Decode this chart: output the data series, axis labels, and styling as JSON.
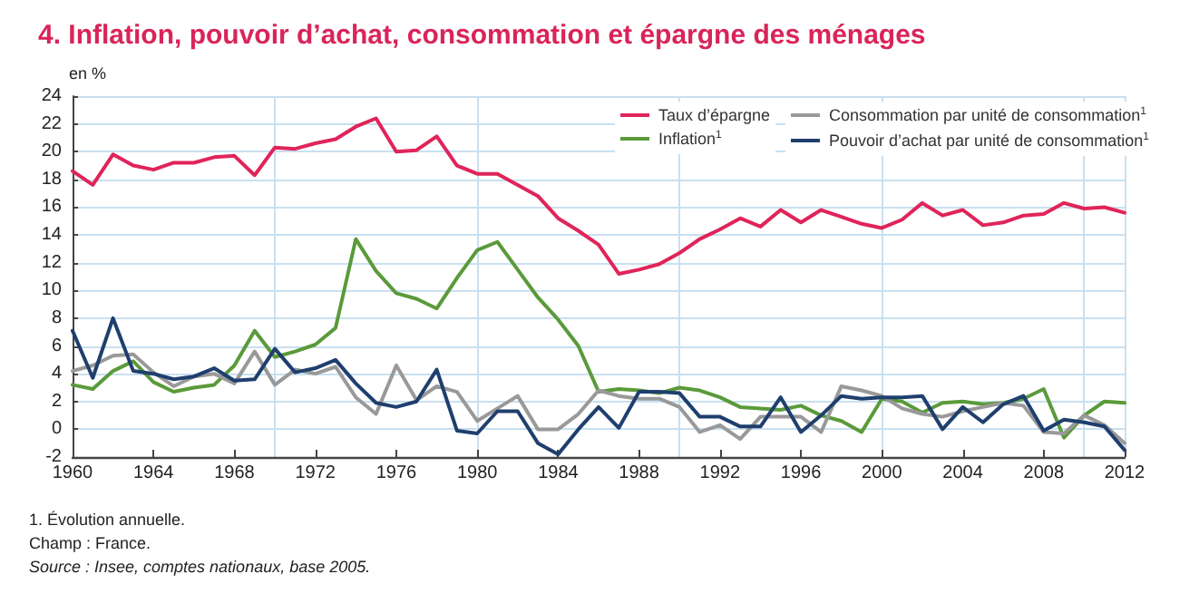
{
  "chart_data": {
    "type": "line",
    "title": "4. Inflation, pouvoir d’achat, consommation et épargne des ménages",
    "ylabel": "en %",
    "annotations": [
      "1. Évolution annuelle.",
      "Champ : France.",
      "Source : Insee, comptes nationaux, base 2005."
    ],
    "x": [
      1960,
      1961,
      1962,
      1963,
      1964,
      1965,
      1966,
      1967,
      1968,
      1969,
      1970,
      1971,
      1972,
      1973,
      1974,
      1975,
      1976,
      1977,
      1978,
      1979,
      1980,
      1981,
      1982,
      1983,
      1984,
      1985,
      1986,
      1987,
      1988,
      1989,
      1990,
      1991,
      1992,
      1993,
      1994,
      1995,
      1996,
      1997,
      1998,
      1999,
      2000,
      2001,
      2002,
      2003,
      2004,
      2005,
      2006,
      2007,
      2008,
      2009,
      2010,
      2011,
      2012
    ],
    "series": [
      {
        "name": "Taux d’épargne",
        "color": "#e0245a",
        "values": [
          18.6,
          17.6,
          19.8,
          19.0,
          18.7,
          19.2,
          19.2,
          19.6,
          19.7,
          18.3,
          20.3,
          20.2,
          20.6,
          20.9,
          21.8,
          22.4,
          20.0,
          20.1,
          21.1,
          19.0,
          18.4,
          18.4,
          17.6,
          16.8,
          15.2,
          14.3,
          13.3,
          11.2,
          11.5,
          11.9,
          12.7,
          13.7,
          14.4,
          15.2,
          14.6,
          15.8,
          14.9,
          15.8,
          15.3,
          14.8,
          14.5,
          15.1,
          16.3,
          15.4,
          15.8,
          14.7,
          14.9,
          15.4,
          15.5,
          16.3,
          15.9,
          16.0,
          15.6
        ]
      },
      {
        "name": "Inflation$^{1}$",
        "color": "#5a9a3a",
        "values": [
          3.2,
          2.9,
          4.2,
          4.9,
          3.4,
          2.7,
          3.0,
          3.2,
          4.6,
          7.1,
          5.2,
          5.6,
          6.1,
          7.3,
          13.7,
          11.4,
          9.8,
          9.4,
          8.7,
          10.9,
          12.9,
          13.5,
          11.5,
          9.5,
          7.9,
          6.0,
          2.7,
          2.9,
          2.8,
          2.6,
          3.0,
          2.8,
          2.3,
          1.6,
          1.5,
          1.4,
          1.7,
          1.0,
          0.6,
          -0.2,
          2.2,
          2.0,
          1.2,
          1.9,
          2.0,
          1.8,
          1.9,
          2.2,
          2.9,
          -0.6,
          1.0,
          2.0,
          1.9
        ]
      },
      {
        "name": "Consommation par unité de consommation$^{1}$",
        "color": "#999999",
        "values": [
          4.2,
          4.6,
          5.3,
          5.4,
          4.1,
          3.1,
          3.8,
          4.0,
          3.3,
          5.6,
          3.2,
          4.3,
          4.0,
          4.5,
          2.3,
          1.1,
          4.6,
          2.1,
          3.1,
          2.7,
          0.6,
          1.5,
          2.4,
          0.0,
          0.0,
          1.1,
          2.8,
          2.4,
          2.2,
          2.2,
          1.6,
          -0.2,
          0.3,
          -0.7,
          0.9,
          0.9,
          0.9,
          -0.2,
          3.1,
          2.8,
          2.4,
          1.5,
          1.1,
          0.9,
          1.3,
          1.6,
          1.9,
          1.7,
          -0.2,
          -0.3,
          1.0,
          0.3,
          -1.0
        ]
      },
      {
        "name": "Pouvoir d’achat par unité de consommation$^{1}$",
        "color": "#1f3f6e",
        "values": [
          7.1,
          3.7,
          8.0,
          4.2,
          4.0,
          3.6,
          3.8,
          4.4,
          3.5,
          3.6,
          5.8,
          4.1,
          4.4,
          5.0,
          3.3,
          1.9,
          1.6,
          2.0,
          4.3,
          -0.1,
          -0.3,
          1.3,
          1.3,
          -1.0,
          -1.8,
          0.0,
          1.6,
          0.1,
          2.7,
          2.7,
          2.6,
          0.9,
          0.9,
          0.2,
          0.2,
          2.3,
          -0.2,
          1.0,
          2.4,
          2.2,
          2.3,
          2.3,
          2.4,
          0.0,
          1.6,
          0.5,
          1.8,
          2.4,
          -0.1,
          0.7,
          0.5,
          0.2,
          -1.5
        ]
      }
    ],
    "xlim": [
      1960,
      2012
    ],
    "xticks": [
      1960,
      1964,
      1968,
      1972,
      1976,
      1980,
      1984,
      1988,
      1992,
      1996,
      2000,
      2004,
      2008,
      2012
    ],
    "ylim": [
      -2,
      24
    ],
    "yticks": [
      -2,
      0,
      2,
      4,
      6,
      8,
      10,
      12,
      14,
      16,
      18,
      20,
      22,
      24
    ],
    "grid": true,
    "legend": "top right",
    "marker": "none",
    "line_style": "solid"
  }
}
